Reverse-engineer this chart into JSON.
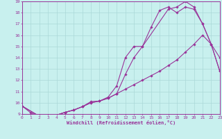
{
  "xlabel": "Windchill (Refroidissement éolien,°C)",
  "bg_color": "#c8f0ee",
  "line_color": "#993399",
  "grid_color": "#aad8d8",
  "xmin": 0,
  "xmax": 23,
  "ymin": 9,
  "ymax": 19,
  "line1_x": [
    0,
    1,
    2,
    3,
    4,
    5,
    6,
    7,
    8,
    9,
    10,
    11,
    12,
    13,
    14,
    15,
    16,
    17,
    18,
    19,
    20,
    21,
    22,
    23
  ],
  "line1_y": [
    9.7,
    9.1,
    8.8,
    8.85,
    8.9,
    9.15,
    9.35,
    9.65,
    10.1,
    10.15,
    10.5,
    11.5,
    14.0,
    15.0,
    15.0,
    16.7,
    18.2,
    18.5,
    18.0,
    18.5,
    18.3,
    17.0,
    15.2,
    14.0
  ],
  "line2_x": [
    0,
    2,
    3,
    4,
    5,
    6,
    7,
    8,
    9,
    10,
    11,
    12,
    13,
    14,
    17,
    18,
    19,
    20,
    21,
    22,
    23
  ],
  "line2_y": [
    9.7,
    8.8,
    8.85,
    8.9,
    9.15,
    9.35,
    9.65,
    10.0,
    10.15,
    10.4,
    10.8,
    12.5,
    14.0,
    15.0,
    18.3,
    18.5,
    19.0,
    18.5,
    17.0,
    15.2,
    12.8
  ],
  "line3_x": [
    0,
    2,
    3,
    4,
    5,
    6,
    7,
    8,
    9,
    10,
    11,
    12,
    13,
    14,
    15,
    16,
    17,
    18,
    19,
    20,
    21,
    22,
    23
  ],
  "line3_y": [
    9.7,
    8.8,
    8.85,
    8.9,
    9.15,
    9.35,
    9.65,
    10.0,
    10.15,
    10.4,
    10.8,
    11.2,
    11.6,
    12.0,
    12.4,
    12.8,
    13.3,
    13.8,
    14.5,
    15.2,
    16.0,
    15.2,
    12.8
  ]
}
